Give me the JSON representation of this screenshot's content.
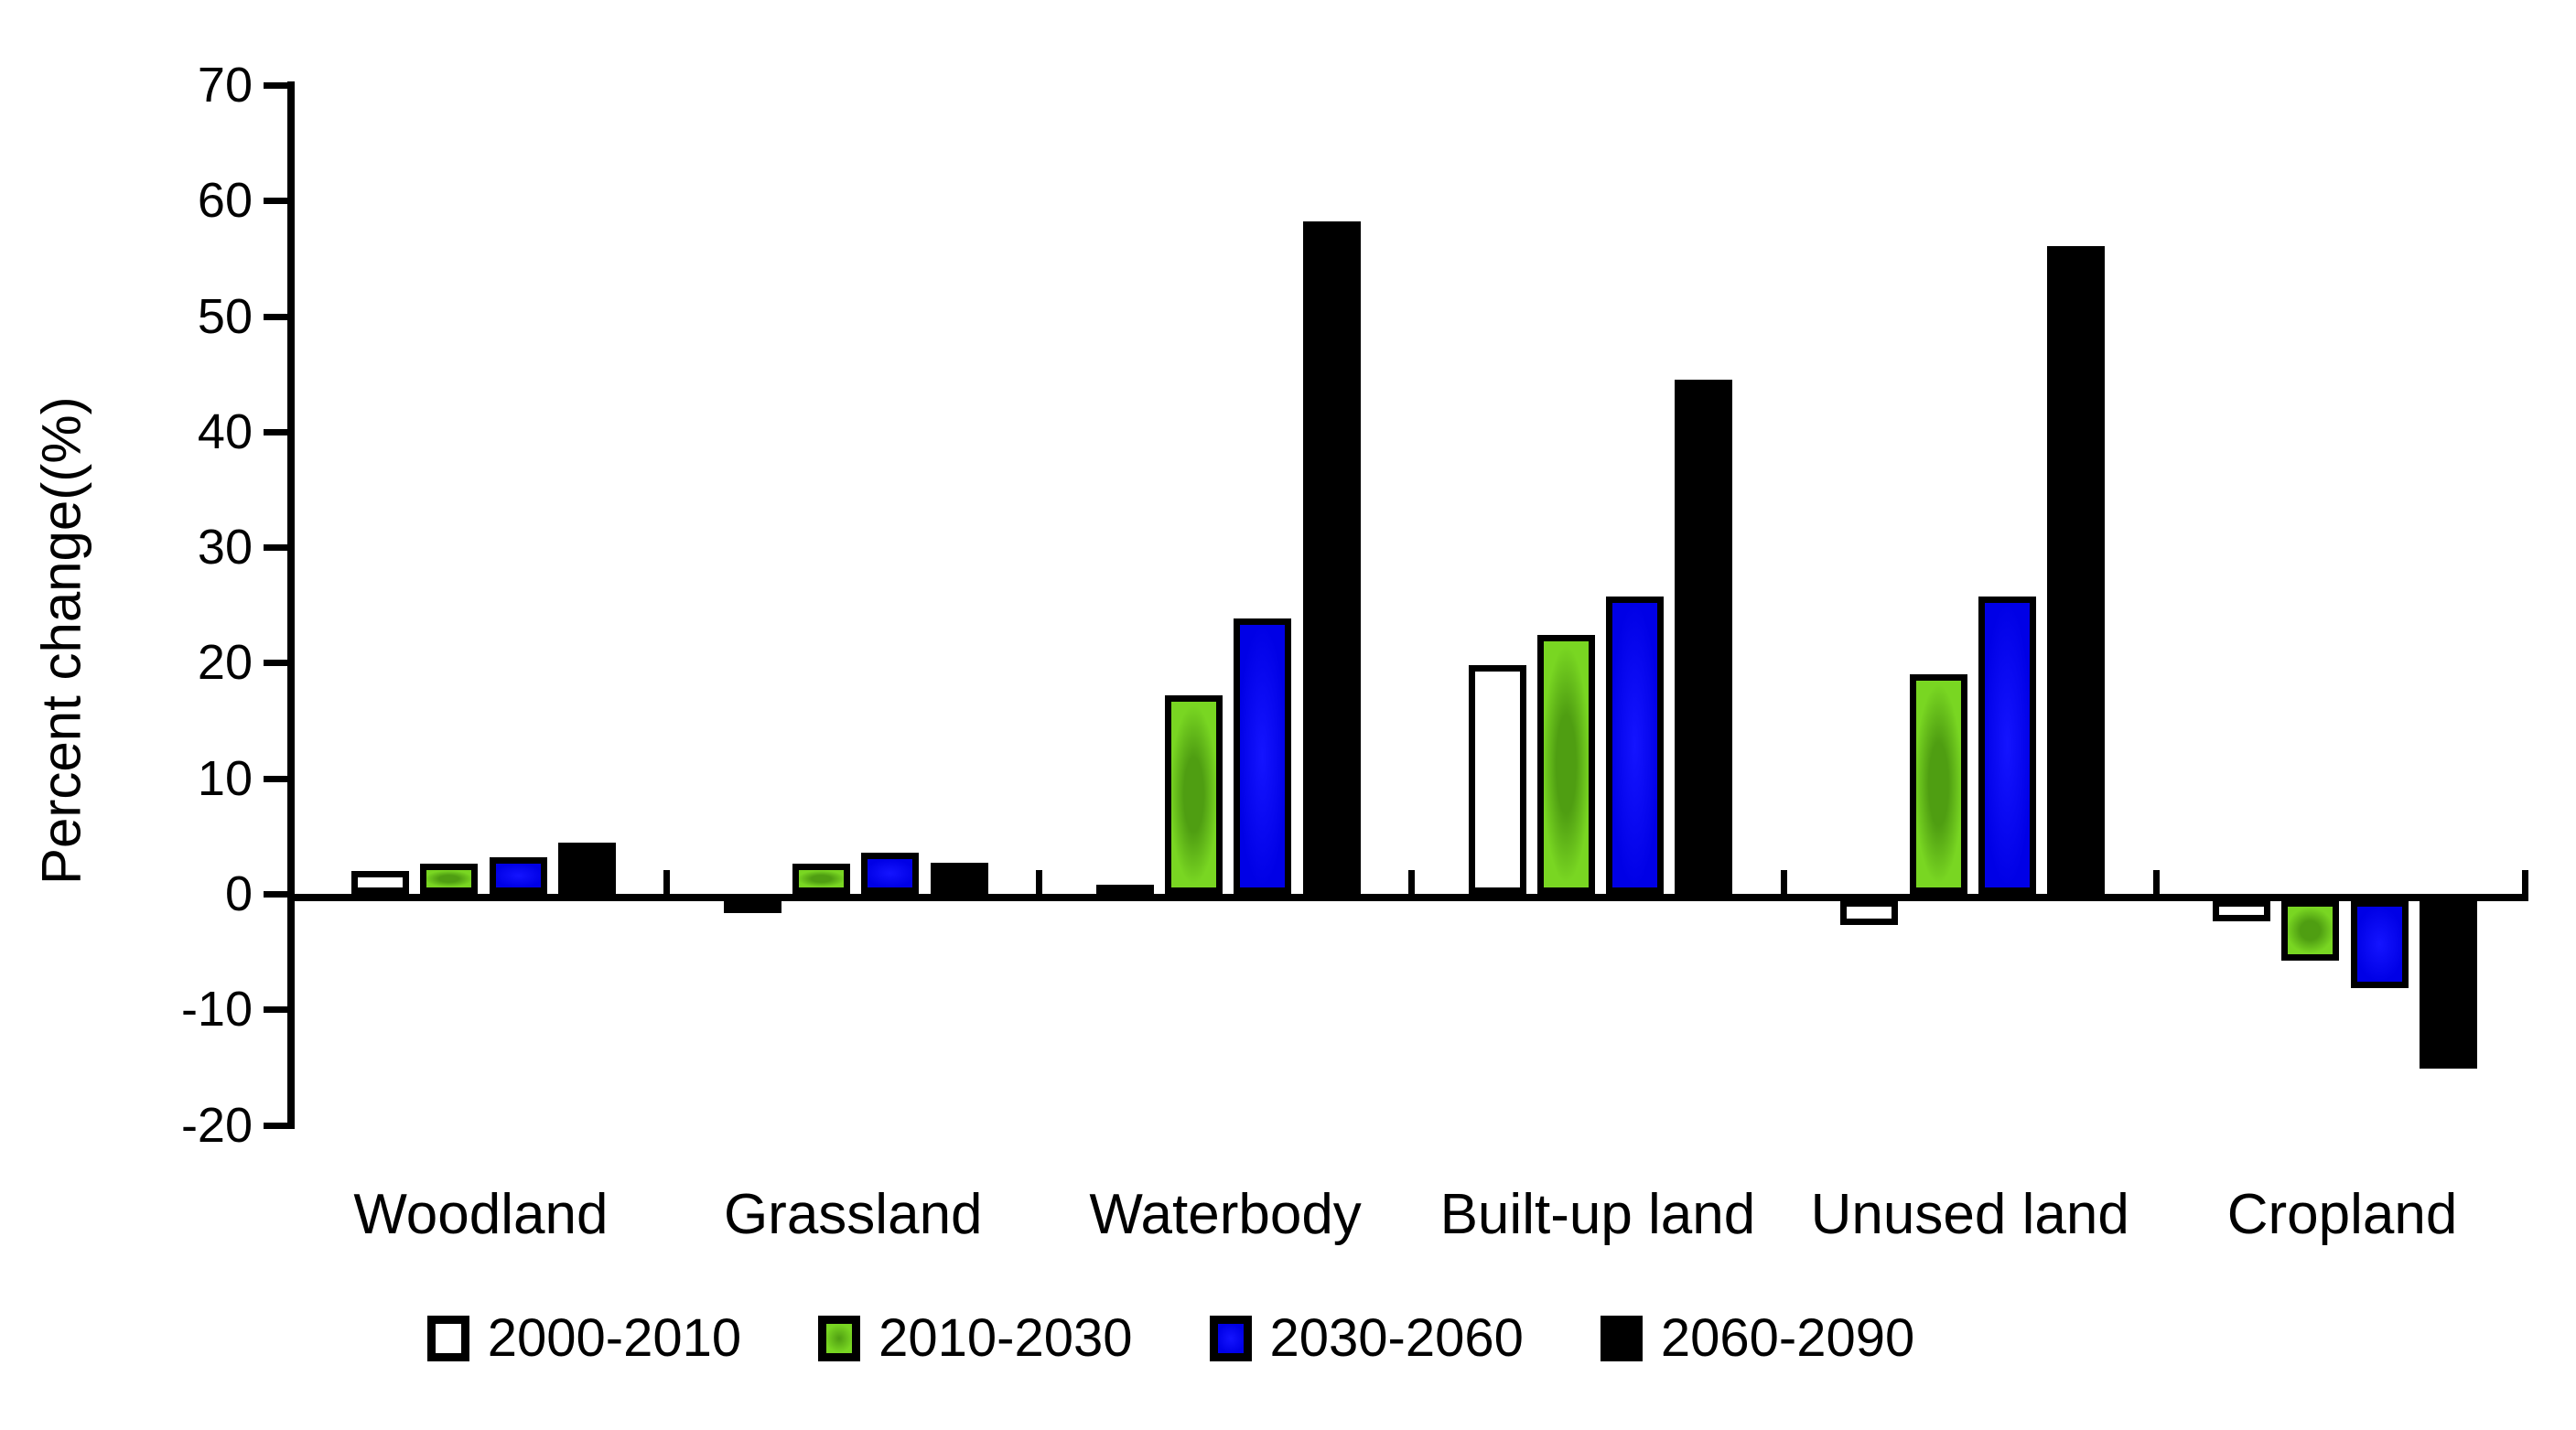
{
  "chart_data": {
    "type": "bar",
    "title": "",
    "xlabel": "",
    "ylabel": "Percent change((%)",
    "ylim": [
      -20,
      70
    ],
    "ytick_step": 10,
    "yticks": [
      70,
      60,
      50,
      40,
      30,
      20,
      10,
      0,
      -10,
      -20
    ],
    "grid": false,
    "legend_position": "bottom",
    "categories": [
      "Woodland",
      "Grassland",
      "Waterbody",
      "Built-up land",
      "Unused land",
      "Cropland"
    ],
    "series": [
      {
        "name": "2000-2010",
        "color": "#FFFFFF",
        "values": [
          2.0,
          -0.5,
          0.8,
          19.8,
          -2.1,
          -1.8
        ]
      },
      {
        "name": "2010-2030",
        "color": "#6BCB1D",
        "values": [
          2.6,
          2.6,
          17.2,
          22.4,
          19.0,
          -5.2
        ]
      },
      {
        "name": "2030-2060",
        "color": "#0000EE",
        "values": [
          3.2,
          3.6,
          23.8,
          25.7,
          25.7,
          -7.6
        ]
      },
      {
        "name": "2060-2090",
        "color": "#000000",
        "values": [
          4.4,
          2.7,
          58.2,
          44.5,
          56.1,
          -14.6
        ]
      }
    ],
    "bar_outline_color": "#000000",
    "axis_color": "#000000"
  }
}
